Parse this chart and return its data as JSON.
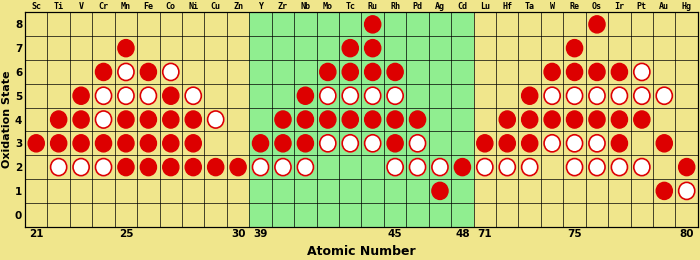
{
  "elements": [
    "Sc",
    "Ti",
    "V",
    "Cr",
    "Mn",
    "Fe",
    "Co",
    "Ni",
    "Cu",
    "Zn",
    "Y",
    "Zr",
    "Nb",
    "Mo",
    "Tc",
    "Ru",
    "Rh",
    "Pd",
    "Ag",
    "Cd",
    "Lu",
    "Hf",
    "Ta",
    "W",
    "Re",
    "Os",
    "Ir",
    "Pt",
    "Au",
    "Hg"
  ],
  "atomic_numbers": [
    21,
    22,
    23,
    24,
    25,
    26,
    27,
    28,
    29,
    30,
    39,
    40,
    41,
    42,
    43,
    44,
    45,
    46,
    47,
    48,
    71,
    72,
    73,
    74,
    75,
    76,
    77,
    78,
    79,
    80
  ],
  "bg_color_main": "#f0e68c",
  "bg_color_green": "#90ee90",
  "solid_color": "#dd0000",
  "ring_color": "#dd0000",
  "ring_fill": "#ffffff",
  "solid_data": {
    "21": [
      3
    ],
    "22": [
      3,
      4
    ],
    "23": [
      3,
      4,
      5
    ],
    "24": [
      3,
      6
    ],
    "25": [
      2,
      3,
      4,
      7
    ],
    "26": [
      2,
      3,
      4,
      6
    ],
    "27": [
      2,
      3,
      4,
      5
    ],
    "28": [
      2,
      3,
      4
    ],
    "29": [
      2
    ],
    "30": [
      2
    ],
    "39": [
      3
    ],
    "40": [
      3,
      4
    ],
    "41": [
      3,
      4,
      5
    ],
    "42": [
      4,
      6
    ],
    "43": [
      4,
      6,
      7
    ],
    "44": [
      4,
      6,
      7,
      8
    ],
    "45": [
      3,
      4,
      6
    ],
    "46": [
      4
    ],
    "47": [
      1
    ],
    "48": [
      2
    ],
    "71": [
      3
    ],
    "72": [
      3,
      4
    ],
    "73": [
      3,
      4,
      5
    ],
    "74": [
      4,
      6
    ],
    "75": [
      4,
      6,
      7
    ],
    "76": [
      4,
      6,
      8
    ],
    "77": [
      3,
      4,
      6
    ],
    "78": [
      4
    ],
    "79": [
      1,
      3
    ],
    "80": [
      2
    ]
  },
  "ring_data": {
    "22": [
      2
    ],
    "23": [
      2
    ],
    "24": [
      2,
      4,
      5
    ],
    "25": [
      5,
      6
    ],
    "26": [
      5
    ],
    "27": [
      6
    ],
    "28": [
      5
    ],
    "29": [
      4
    ],
    "39": [
      2
    ],
    "40": [
      2
    ],
    "41": [
      2
    ],
    "42": [
      3,
      5
    ],
    "43": [
      3,
      5
    ],
    "44": [
      3,
      5
    ],
    "45": [
      2,
      5
    ],
    "46": [
      2,
      3
    ],
    "47": [
      2
    ],
    "71": [
      2
    ],
    "72": [
      2
    ],
    "73": [
      2
    ],
    "74": [
      3,
      5
    ],
    "75": [
      2,
      3,
      5
    ],
    "76": [
      2,
      3,
      5
    ],
    "77": [
      2,
      5
    ],
    "78": [
      2,
      5,
      6
    ],
    "79": [
      5
    ],
    "80": [
      1
    ]
  },
  "xlabel": "Atomic Number",
  "ylabel": "Oxidation State",
  "x_ticks": [
    21,
    25,
    30,
    39,
    45,
    48,
    71,
    75,
    80
  ]
}
